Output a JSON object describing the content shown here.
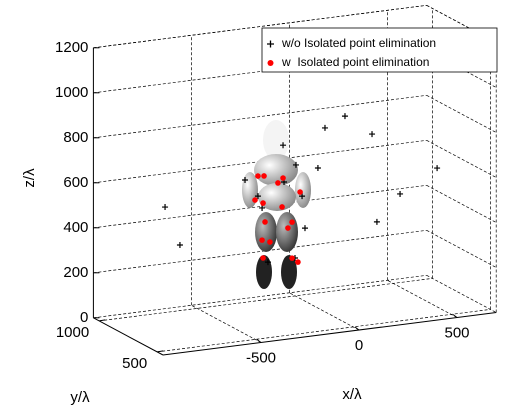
{
  "chart_data": {
    "type": "scatter3d",
    "xlabel": "x/λ",
    "ylabel": "y/λ",
    "zlabel": "z/λ",
    "xlim": [
      -1000,
      700
    ],
    "ylim": [
      450,
      1050
    ],
    "zlim": [
      0,
      1200
    ],
    "xticks": [
      -500,
      0,
      500
    ],
    "yticks": [
      500,
      1000
    ],
    "zticks": [
      0,
      200,
      400,
      600,
      800,
      1000,
      1200
    ],
    "grid": true,
    "legend": "upper right",
    "series": [
      {
        "name": "w/o Isolated point elimination",
        "color": "#000000",
        "marker": "plus",
        "x": [
          -812,
          -736,
          -404,
          4,
          106,
          244,
          269,
          387,
          576,
          -210,
          -144,
          -32,
          -338,
          -317,
          -113,
          -98,
          -287,
          -149,
          -205
        ],
        "y": [
          750,
          750,
          750,
          750,
          750,
          750,
          750,
          750,
          750,
          750,
          750,
          750,
          750,
          750,
          750,
          750,
          750,
          750,
          750
        ],
        "z": [
          554,
          377,
          629,
          815,
          856,
          761,
          368,
          479,
          573,
          762,
          667,
          641,
          550,
          495,
          525,
          381,
          251,
          254,
          598
        ]
      },
      {
        "name": "w  Isolated point elimination",
        "color": "#ff0000",
        "marker": "dot",
        "x": [
          -338,
          -307,
          -210,
          -236,
          -123,
          -353,
          -312,
          -215,
          -302,
          -185,
          -164,
          -317,
          -277,
          -312,
          -164,
          -134
        ],
        "y": [
          750,
          750,
          750,
          750,
          750,
          750,
          750,
          750,
          750,
          750,
          750,
          750,
          750,
          750,
          750,
          750
        ],
        "z": [
          639,
          636,
          616,
          597,
          544,
          534,
          516,
          488,
          431,
          391,
          415,
          352,
          339,
          272,
          255,
          234
        ]
      }
    ]
  }
}
